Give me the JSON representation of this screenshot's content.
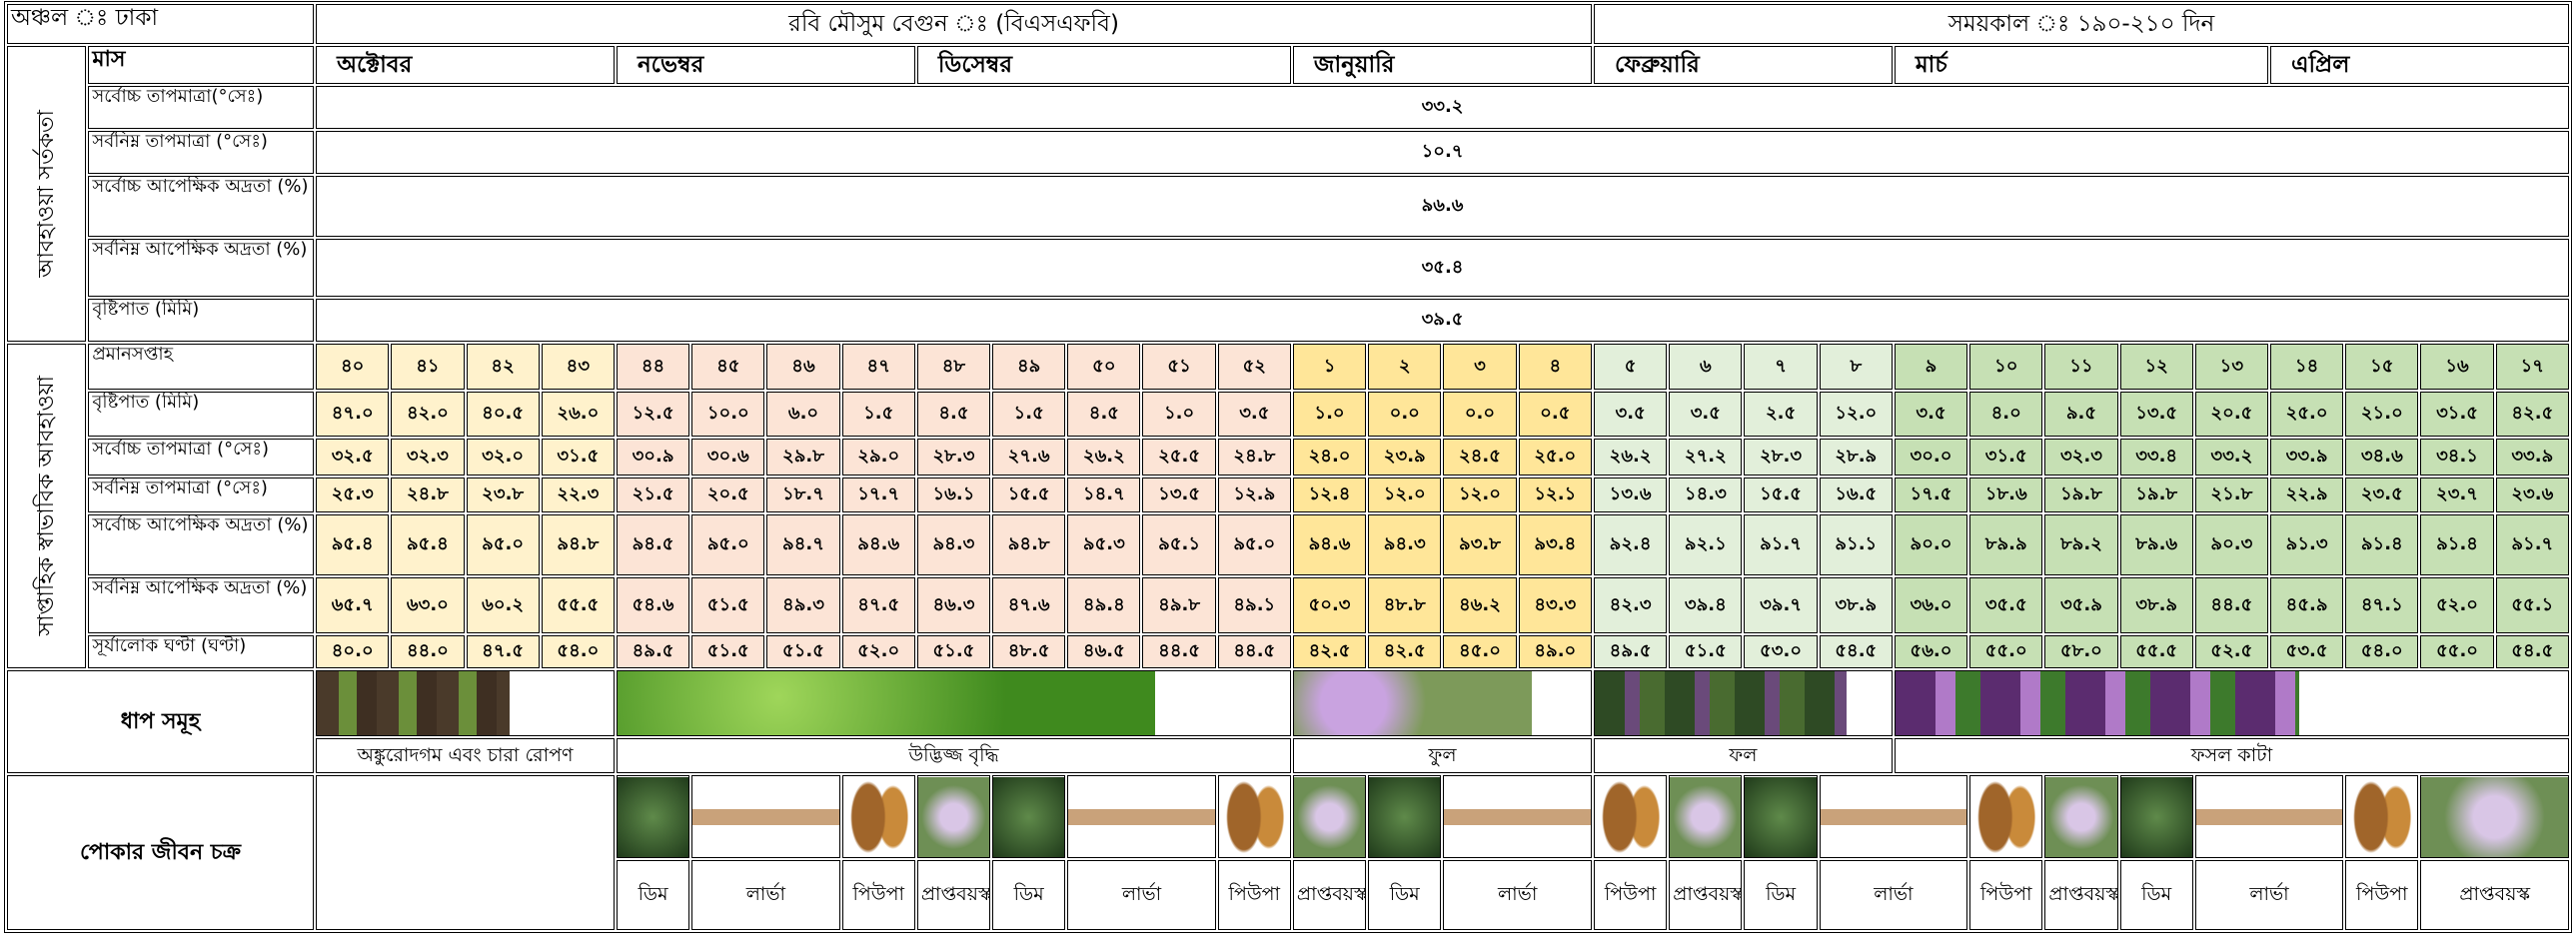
{
  "header": {
    "region": "অঞ্চল ঃ ঢাকা",
    "crop": "রবি মৌসুম বেগুন ঃ (বিএসএফবি)",
    "duration": "সময়কাল ঃ ১৯০-২১০ দিন"
  },
  "weather_alert": {
    "section_label": "আবহাওয়া সর্তকতা",
    "month_label": "মাস",
    "months": [
      "অক্টোবর",
      "নভেম্বর",
      "ডিসেম্বর",
      "জানুয়ারি",
      "ফেব্রুয়ারি",
      "মার্চ",
      "এপ্রিল"
    ],
    "rows": [
      {
        "label": "সর্বোচ্চ তাপমাত্রা(°সেঃ)",
        "value": "৩৩.২"
      },
      {
        "label": "সর্বনিম্ন তাপমাত্রা (°সেঃ)",
        "value": "১০.৭"
      },
      {
        "label": "সর্বোচ্চ আপেক্ষিক অদ্রতা (%)",
        "value": "৯৬.৬"
      },
      {
        "label": "সর্বনিম্ন আপেক্ষিক অদ্রতা (%)",
        "value": "৩৫.৪"
      },
      {
        "label": "বৃষ্টিপাত (মিমি)",
        "value": "৩৯.৫"
      }
    ]
  },
  "weekly_normal": {
    "section_label": "সাপ্তাহিক স্বাভাবিক আবহাওয়া",
    "rows": [
      {
        "label": "প্রমানসপ্তাহ",
        "values": [
          "৪০",
          "৪১",
          "৪২",
          "৪৩",
          "৪৪",
          "৪৫",
          "৪৬",
          "৪৭",
          "৪৮",
          "৪৯",
          "৫০",
          "৫১",
          "৫২",
          "১",
          "২",
          "৩",
          "৪",
          "৫",
          "৬",
          "৭",
          "৮",
          "৯",
          "১০",
          "১১",
          "১২",
          "১৩",
          "১৪",
          "১৫",
          "১৬",
          "১৭"
        ]
      },
      {
        "label": "বৃষ্টিপাত (মিমি)",
        "values": [
          "৪৭.০",
          "৪২.০",
          "৪০.৫",
          "২৬.০",
          "১২.৫",
          "১০.০",
          "৬.০",
          "১.৫",
          "৪.৫",
          "১.৫",
          "৪.৫",
          "১.০",
          "৩.৫",
          "১.০",
          "০.০",
          "০.০",
          "০.৫",
          "৩.৫",
          "৩.৫",
          "২.৫",
          "১২.০",
          "৩.৫",
          "৪.০",
          "৯.৫",
          "১৩.৫",
          "২০.৫",
          "২৫.০",
          "২১.০",
          "৩১.৫",
          "৪২.৫"
        ]
      },
      {
        "label": "সর্বোচ্চ তাপমাত্রা (°সেঃ)",
        "values": [
          "৩২.৫",
          "৩২.৩",
          "৩২.০",
          "৩১.৫",
          "৩০.৯",
          "৩০.৬",
          "২৯.৮",
          "২৯.০",
          "২৮.৩",
          "২৭.৬",
          "২৬.২",
          "২৫.৫",
          "২৪.৮",
          "২৪.০",
          "২৩.৯",
          "২৪.৫",
          "২৫.০",
          "২৬.২",
          "২৭.২",
          "২৮.৩",
          "২৮.৯",
          "৩০.০",
          "৩১.৫",
          "৩২.৩",
          "৩৩.৪",
          "৩৩.২",
          "৩৩.৯",
          "৩৪.৬",
          "৩৪.১",
          "৩৩.৯"
        ]
      },
      {
        "label": "সর্বনিম্ন তাপমাত্রা (°সেঃ)",
        "values": [
          "২৫.৩",
          "২৪.৮",
          "২৩.৮",
          "২২.৩",
          "২১.৫",
          "২০.৫",
          "১৮.৭",
          "১৭.৭",
          "১৬.১",
          "১৫.৫",
          "১৪.৭",
          "১৩.৫",
          "১২.৯",
          "১২.৪",
          "১২.০",
          "১২.০",
          "১২.১",
          "১৩.৬",
          "১৪.৩",
          "১৫.৫",
          "১৬.৫",
          "১৭.৫",
          "১৮.৬",
          "১৯.৮",
          "১৯.৮",
          "২১.৮",
          "২২.৯",
          "২৩.৫",
          "২৩.৭",
          "২৩.৬"
        ]
      },
      {
        "label": "সর্বোচ্চ আপেক্ষিক অদ্রতা (%)",
        "values": [
          "৯৫.৪",
          "৯৫.৪",
          "৯৫.০",
          "৯৪.৮",
          "৯৪.৫",
          "৯৫.০",
          "৯৪.৭",
          "৯৪.৬",
          "৯৪.৩",
          "৯৪.৮",
          "৯৫.৩",
          "৯৫.১",
          "৯৫.০",
          "৯৪.৬",
          "৯৪.৩",
          "৯৩.৮",
          "৯৩.৪",
          "৯২.৪",
          "৯২.১",
          "৯১.৭",
          "৯১.১",
          "৯০.০",
          "৮৯.৯",
          "৮৯.২",
          "৮৯.৬",
          "৯০.৩",
          "৯১.৩",
          "৯১.৪",
          "৯১.৪",
          "৯১.৭"
        ]
      },
      {
        "label": "সর্বনিম্ন আপেক্ষিক অদ্রতা (%)",
        "values": [
          "৬৫.৭",
          "৬৩.০",
          "৬০.২",
          "৫৫.৫",
          "৫৪.৬",
          "৫১.৫",
          "৪৯.৩",
          "৪৭.৫",
          "৪৬.৩",
          "৪৭.৬",
          "৪৯.৪",
          "৪৯.৮",
          "৪৯.১",
          "৫০.৩",
          "৪৮.৮",
          "৪৬.২",
          "৪৩.৩",
          "৪২.৩",
          "৩৯.৪",
          "৩৯.৭",
          "৩৮.৯",
          "৩৬.০",
          "৩৫.৫",
          "৩৫.৯",
          "৩৮.৯",
          "৪৪.৫",
          "৪৫.৯",
          "৪৭.১",
          "৫২.০",
          "৫৫.১"
        ]
      },
      {
        "label": "সূর্যালোক ঘণ্টা (ঘণ্টা)",
        "values": [
          "৪০.০",
          "৪৪.০",
          "৪৭.৫",
          "৫৪.০",
          "৪৯.৫",
          "৫১.৫",
          "৫১.৫",
          "৫২.০",
          "৫১.৫",
          "৪৮.৫",
          "৪৬.৫",
          "৪৪.৫",
          "৪৪.৫",
          "৪২.৫",
          "৪২.৫",
          "৪৫.০",
          "৪৯.০",
          "৪৯.৫",
          "৫১.৫",
          "৫৩.০",
          "৫৪.৫",
          "৫৬.০",
          "৫৫.০",
          "৫৮.০",
          "৫৫.৫",
          "৫২.৫",
          "৫৩.৫",
          "৫৪.০",
          "৫৫.০",
          "৫৪.৫"
        ]
      }
    ]
  },
  "stages": {
    "label": "ধাপ সমূহ",
    "items": [
      "অঙ্কুরোদগম এবং চারা রোপণ",
      "উদ্ভিজ্জ বৃদ্ধি",
      "ফুল",
      "ফল",
      "ফসল কাটা"
    ]
  },
  "insect_cycle": {
    "label": "পোকার জীবন চক্র",
    "items": [
      "ডিম",
      "লার্ভা",
      "পিউপা",
      "প্রাপ্তবয়স্ক",
      "ডিম",
      "লার্ভা",
      "পিউপা",
      "প্রাপ্তবয়স্ক",
      "ডিম",
      "লার্ভা",
      "পিউপা",
      "প্রাপ্তবয়স্ক",
      "ডিম",
      "লার্ভা",
      "পিউপা",
      "প্রাপ্তবয়স্ক",
      "ডিম",
      "লার্ভা",
      "পিউপা",
      "প্রাপ্তবয়স্ক"
    ]
  }
}
